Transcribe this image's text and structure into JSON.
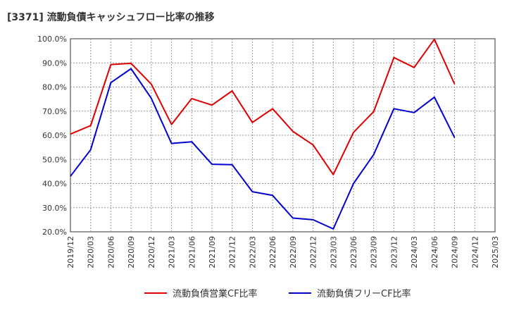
{
  "chart_data": {
    "type": "line",
    "title": "[3371]  流動負債キャッシュフロー比率の推移",
    "xlabel": "",
    "ylabel": "",
    "categories": [
      "2019/12",
      "2020/03",
      "2020/06",
      "2020/09",
      "2020/12",
      "2021/03",
      "2021/06",
      "2021/09",
      "2021/12",
      "2022/03",
      "2022/06",
      "2022/09",
      "2022/12",
      "2023/03",
      "2023/06",
      "2023/09",
      "2023/12",
      "2024/03",
      "2024/06",
      "2024/09",
      "2024/12",
      "2025/03"
    ],
    "ylim": [
      20,
      100
    ],
    "yticks": [
      "20.0%",
      "30.0%",
      "40.0%",
      "50.0%",
      "60.0%",
      "70.0%",
      "80.0%",
      "90.0%",
      "100.0%"
    ],
    "ytick_values": [
      20,
      30,
      40,
      50,
      60,
      70,
      80,
      90,
      100
    ],
    "grid": true,
    "legend_position": "bottom",
    "series": [
      {
        "name": "流動負債営業CF比率",
        "color": "#dd0000",
        "values": [
          60.5,
          64.0,
          89.3,
          89.8,
          81.2,
          64.5,
          75.2,
          72.5,
          78.4,
          65.3,
          71.0,
          61.6,
          56.0,
          43.7,
          61.2,
          69.8,
          92.2,
          88.1,
          99.8,
          81.2,
          null,
          null
        ]
      },
      {
        "name": "流動負債フリーCF比率",
        "color": "#0000cc",
        "values": [
          43.0,
          54.0,
          81.8,
          87.6,
          75.3,
          56.6,
          57.3,
          48.0,
          47.8,
          36.6,
          35.1,
          25.7,
          25.0,
          21.2,
          40.0,
          52.0,
          71.0,
          69.4,
          75.8,
          59.0,
          null,
          null
        ]
      }
    ]
  }
}
